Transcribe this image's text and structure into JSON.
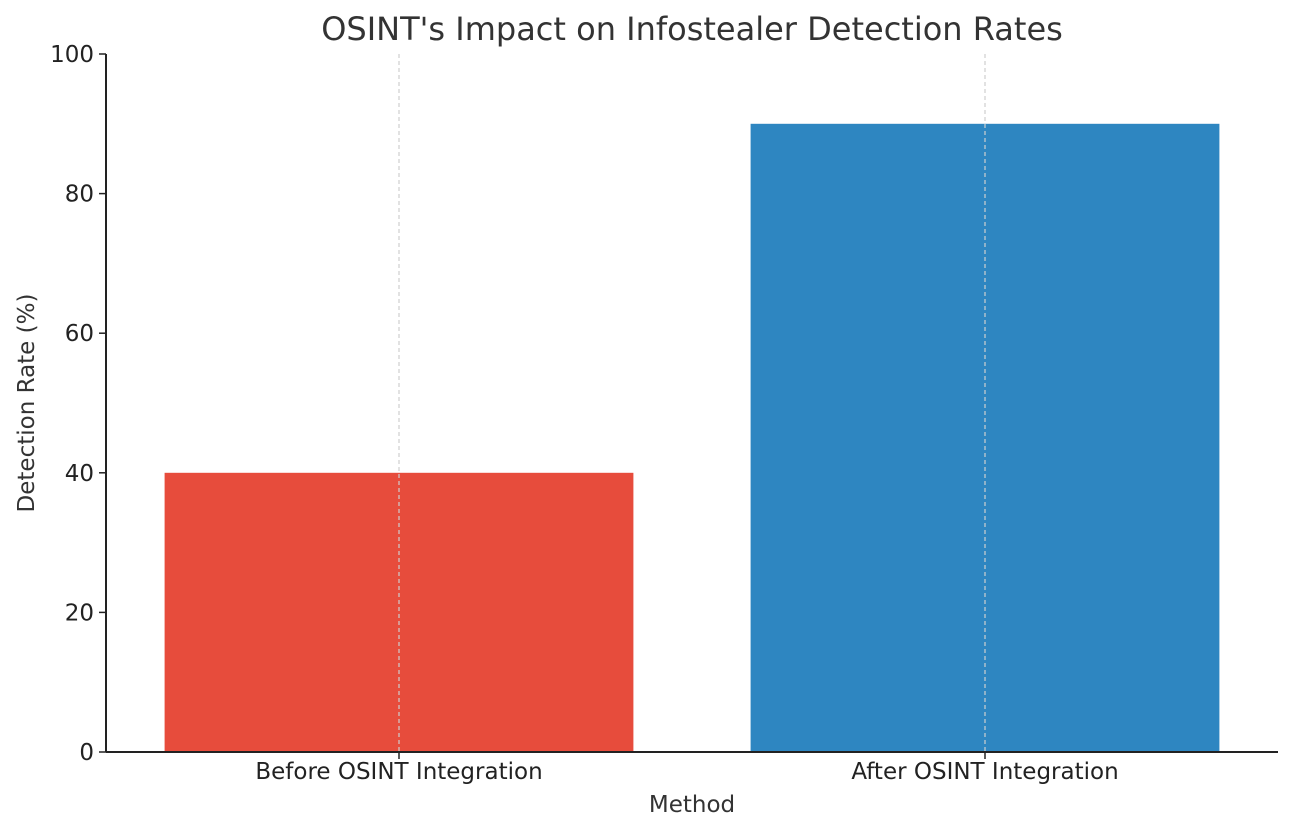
{
  "chart_data": {
    "type": "bar",
    "title": "OSINT's Impact on Infostealer Detection Rates",
    "xlabel": "Method",
    "ylabel": "Detection Rate (%)",
    "categories": [
      "Before OSINT Integration",
      "After OSINT Integration"
    ],
    "values": [
      40,
      90
    ],
    "colors": [
      "#e74c3c",
      "#2e86c1"
    ],
    "ylim": [
      0,
      100
    ],
    "yticks": [
      0,
      20,
      40,
      60,
      80,
      100
    ],
    "grid": "x-only dashed",
    "legend": "none"
  }
}
